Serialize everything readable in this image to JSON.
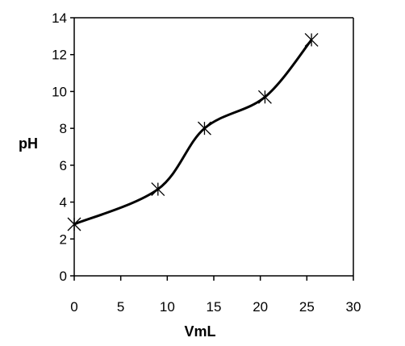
{
  "chart_data": {
    "type": "line",
    "title": "",
    "xlabel": "VmL",
    "ylabel": "pH",
    "xlim": [
      0,
      30
    ],
    "ylim": [
      0,
      14
    ],
    "x_ticks": [
      "0",
      "5",
      "10",
      "15",
      "20",
      "25",
      "30"
    ],
    "y_ticks": [
      "0",
      "2",
      "4",
      "6",
      "8",
      "10",
      "12",
      "14"
    ],
    "grid": false,
    "legend": "none",
    "marker": "asterisk",
    "series": [
      {
        "x": [
          0,
          9,
          14,
          20.5,
          25.5
        ],
        "y": [
          2.8,
          4.7,
          8.0,
          9.7,
          12.8
        ]
      }
    ],
    "line_color": "#000000"
  }
}
